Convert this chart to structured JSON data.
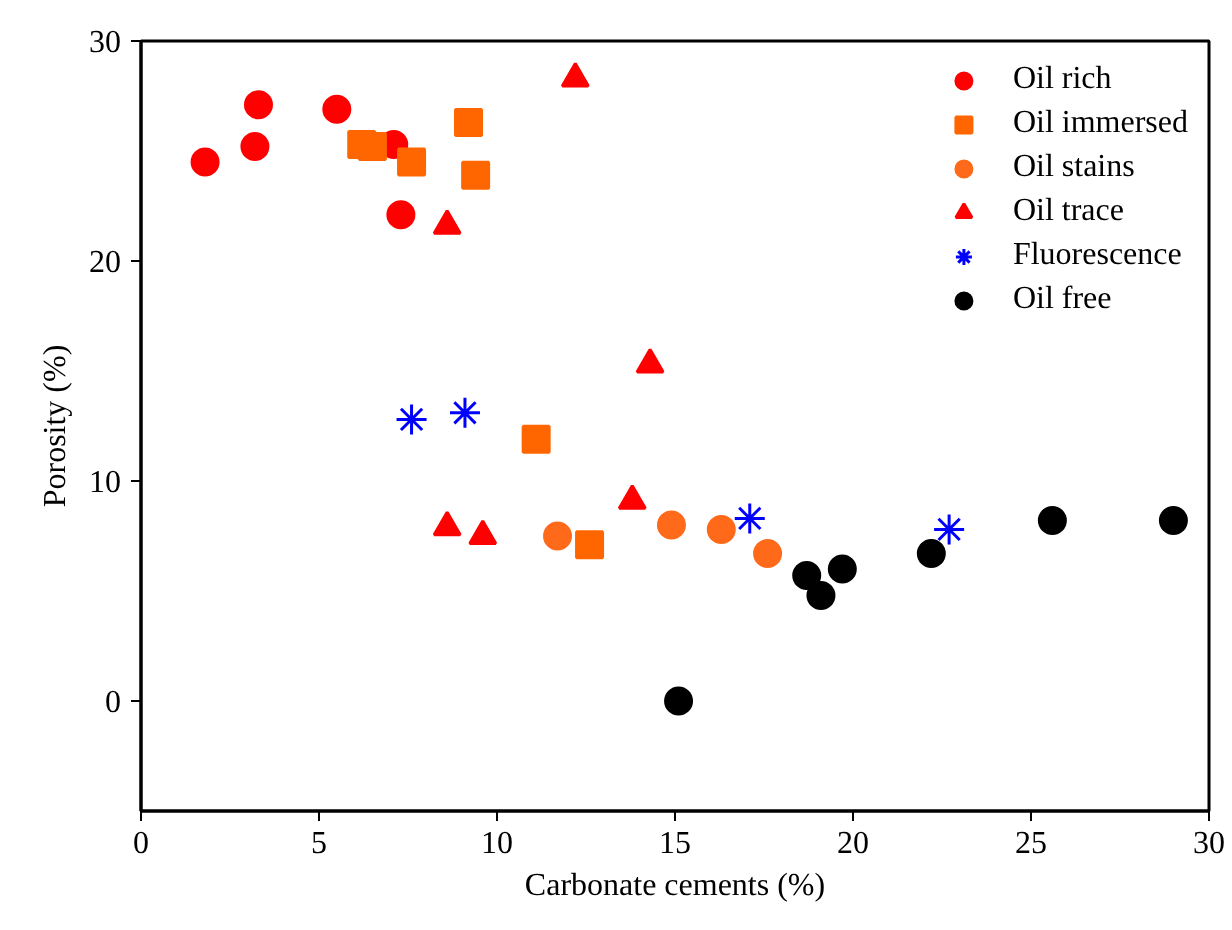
{
  "chart_data": {
    "type": "scatter",
    "xlabel": "Carbonate cements (%)",
    "ylabel": "Porosity (%)",
    "xlim": [
      0,
      30
    ],
    "ylim": [
      -5,
      30
    ],
    "xticks": [
      0,
      5,
      10,
      15,
      20,
      25,
      30
    ],
    "yticks": [
      0,
      10,
      20,
      30
    ],
    "grid": false,
    "legend": "top right",
    "series": [
      {
        "name": "Oil rich",
        "color": "#ff0000",
        "marker": "circle",
        "x": [
          1.8,
          3.2,
          3.3,
          5.5,
          7.1,
          7.3
        ],
        "values": [
          24.5,
          25.2,
          27.1,
          26.9,
          25.3,
          22.1
        ]
      },
      {
        "name": "Oil immersed",
        "color": "#ff6600",
        "marker": "square",
        "x": [
          6.2,
          6.5,
          7.6,
          9.2,
          9.4,
          11.1,
          12.6
        ],
        "values": [
          25.3,
          25.2,
          24.5,
          26.3,
          23.9,
          11.9,
          7.1
        ]
      },
      {
        "name": "Oil stains",
        "color": "#ff6a1a",
        "marker": "circle",
        "x": [
          11.7,
          14.9,
          16.3,
          17.6
        ],
        "values": [
          7.5,
          8.0,
          7.8,
          6.7
        ]
      },
      {
        "name": "Oil trace",
        "color": "#ff0000",
        "marker": "triangle",
        "x": [
          12.2,
          8.6,
          14.3,
          8.6,
          9.6,
          13.8
        ],
        "values": [
          28.3,
          21.6,
          15.3,
          7.9,
          7.5,
          9.1
        ]
      },
      {
        "name": "Fluorescence",
        "color": "#0000ff",
        "marker": "cross",
        "x": [
          7.6,
          9.1,
          17.1,
          22.7
        ],
        "values": [
          12.8,
          13.1,
          8.3,
          7.8
        ]
      },
      {
        "name": "Oil free",
        "color": "#000000",
        "marker": "circle",
        "x": [
          15.1,
          18.7,
          19.1,
          19.7,
          22.2,
          25.6,
          29.0
        ],
        "values": [
          0.0,
          5.7,
          4.8,
          6.0,
          6.7,
          8.2,
          8.2
        ]
      }
    ]
  }
}
